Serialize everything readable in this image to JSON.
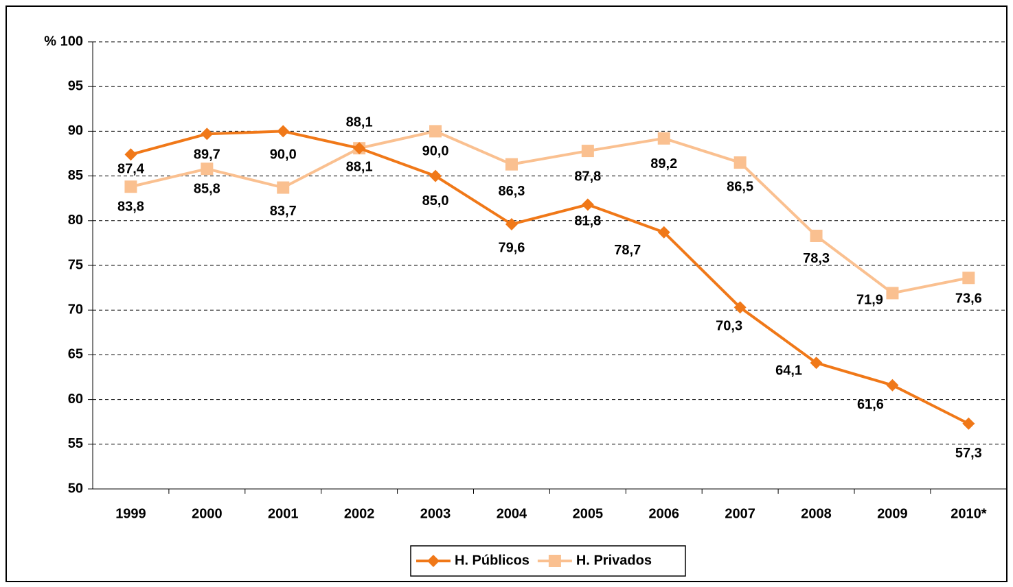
{
  "chart_data": {
    "type": "line",
    "categories": [
      "1999",
      "2000",
      "2001",
      "2002",
      "2003",
      "2004",
      "2005",
      "2006",
      "2007",
      "2008",
      "2009",
      "2010*"
    ],
    "series": [
      {
        "name": "H. Públicos",
        "color": "#f07818",
        "marker": "diamond",
        "values": [
          87.4,
          89.7,
          90.0,
          88.1,
          85.0,
          79.6,
          81.8,
          78.7,
          70.3,
          64.1,
          61.6,
          57.3
        ],
        "value_labels": [
          "87,4",
          "89,7",
          "90,0",
          "88,1",
          "85,0",
          "79,6",
          "81,8",
          "78,7",
          "70,3",
          "64,1",
          "61,6",
          "57,3"
        ]
      },
      {
        "name": "H. Privados",
        "color": "#fac090",
        "marker": "square",
        "values": [
          83.8,
          85.8,
          83.7,
          88.1,
          90.0,
          86.3,
          87.8,
          89.2,
          86.5,
          78.3,
          71.9,
          73.6
        ],
        "value_labels": [
          "83,8",
          "85,8",
          "83,7",
          "88,1",
          "90,0",
          "86,3",
          "87,8",
          "89,2",
          "86,5",
          "78,3",
          "71,9",
          "73,6"
        ]
      }
    ],
    "ylim": [
      50,
      100
    ],
    "yticks": [
      50,
      55,
      60,
      65,
      70,
      75,
      80,
      85,
      90,
      95,
      {
        "value": 100,
        "label": "% 100"
      }
    ],
    "grid": true,
    "legend": "bottom"
  }
}
